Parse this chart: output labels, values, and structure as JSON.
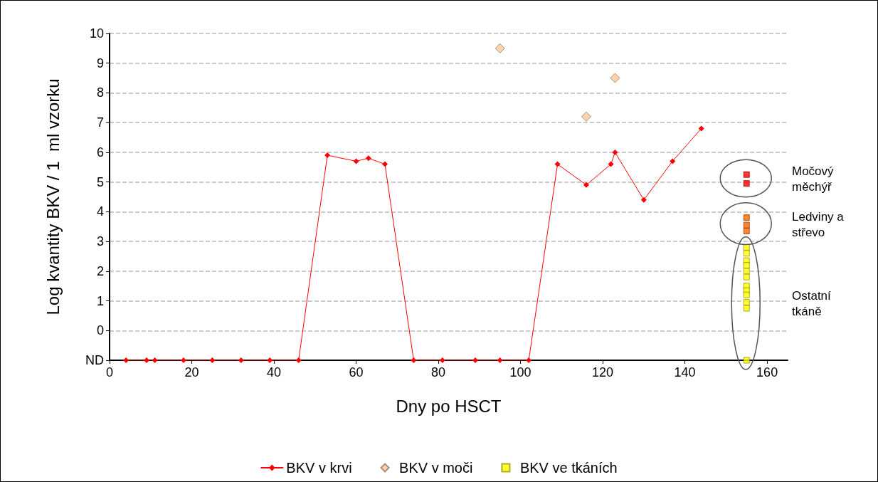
{
  "chart_data": {
    "type": "line",
    "xlabel": "Dny po HSCT",
    "ylabel": "Log kvantity BKV / 1  ml vzorku",
    "xlim": [
      0,
      165
    ],
    "xticks": [
      0,
      20,
      40,
      60,
      80,
      100,
      120,
      140,
      160
    ],
    "ylim": [
      -1,
      10
    ],
    "yticks": [
      {
        "value": -1,
        "label": "ND"
      },
      0,
      1,
      2,
      3,
      4,
      5,
      6,
      7,
      8,
      9,
      10
    ],
    "grid": "y",
    "legend": "bottom",
    "line_style": "solid",
    "series": [
      {
        "name": "BKV v krvi",
        "marker": "diamond",
        "color": "#ff0000",
        "x": [
          4,
          9,
          11,
          18,
          25,
          32,
          39,
          46,
          53,
          60,
          63,
          67,
          74,
          81,
          89,
          95,
          102,
          109,
          116,
          122,
          123,
          130,
          137,
          144
        ],
        "values": [
          -1,
          -1,
          -1,
          -1,
          -1,
          -1,
          -1,
          -1,
          5.9,
          5.7,
          5.8,
          5.6,
          -1,
          -1,
          -1,
          -1,
          -1,
          5.6,
          4.9,
          5.6,
          6.0,
          4.4,
          5.7,
          6.8
        ]
      },
      {
        "name": "BKV v moči",
        "type": "scatter",
        "marker": "diamond",
        "color": "#fcc89b",
        "x": [
          95,
          116,
          123
        ],
        "values": [
          9.5,
          7.2,
          8.5
        ]
      },
      {
        "name": "BKV ve tkáních",
        "type": "scatter",
        "marker": "square",
        "color": "#ffff00",
        "x": [
          155,
          155,
          155,
          155,
          155,
          155,
          155,
          155,
          155,
          155,
          155,
          155,
          155,
          155,
          155,
          155,
          155
        ],
        "values": [
          5.25,
          4.95,
          3.8,
          3.55,
          3.35,
          2.8,
          2.6,
          2.35,
          2.2,
          2.0,
          1.8,
          1.5,
          1.35,
          1.2,
          0.95,
          0.75,
          -1
        ],
        "colors": [
          "#ff0000",
          "#ff0000",
          "#ff6600",
          "#ff6600",
          "#ff6600",
          "#ffff00",
          "#ffff00",
          "#ffff00",
          "#ffff00",
          "#ffff00",
          "#ffff00",
          "#ffff00",
          "#ffff00",
          "#ffff00",
          "#ffff00",
          "#ffff00",
          "#ffff00"
        ]
      }
    ],
    "annotations": [
      "Močový\nměchýř",
      "Ledviny a\nstřevo",
      "Ostatní\ntkáně"
    ]
  }
}
